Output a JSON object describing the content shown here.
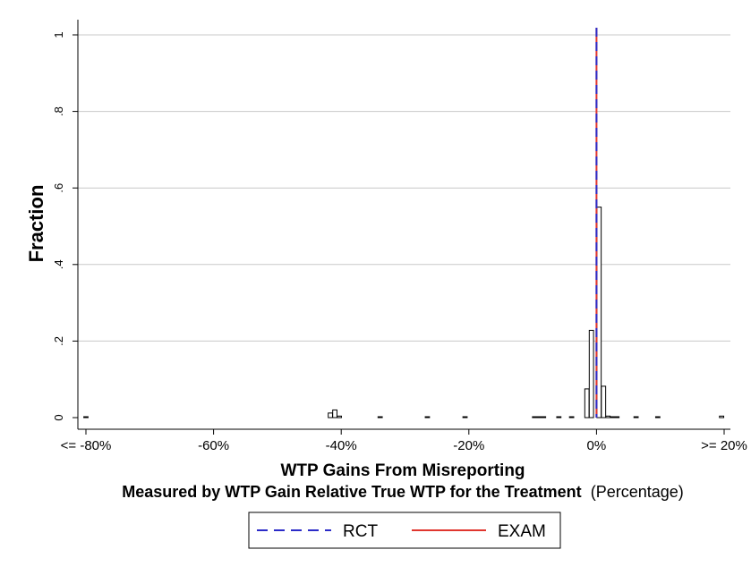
{
  "chart_data": {
    "type": "bar",
    "title": "",
    "xlabel_line1": "WTP Gains From Misreporting",
    "xlabel_line2_bold": "Measured by WTP Gain Relative True WTP for the Treatment",
    "xlabel_line2_plain": "(Percentage)",
    "ylabel": "Fraction",
    "xlim": [
      -81,
      20
    ],
    "ylim": [
      0,
      1
    ],
    "grid": true,
    "x_ticks": [
      {
        "value": -80,
        "label": "<= -80%"
      },
      {
        "value": -60,
        "label": "-60%"
      },
      {
        "value": -40,
        "label": "-40%"
      },
      {
        "value": -20,
        "label": "-20%"
      },
      {
        "value": 0,
        "label": "0%"
      },
      {
        "value": 20,
        "label": ">= 20%"
      }
    ],
    "y_ticks": [
      {
        "value": 0,
        "label": "0"
      },
      {
        "value": 0.2,
        "label": ".2"
      },
      {
        "value": 0.4,
        "label": ".4"
      },
      {
        "value": 0.6,
        "label": ".6"
      },
      {
        "value": 0.8,
        "label": ".8"
      },
      {
        "value": 1,
        "label": "1"
      }
    ],
    "bin_width": 0.67,
    "bins": [
      {
        "x": -80,
        "y": 0.002
      },
      {
        "x": -41.7,
        "y": 0.012
      },
      {
        "x": -41.0,
        "y": 0.02
      },
      {
        "x": -40.3,
        "y": 0.004
      },
      {
        "x": -33.9,
        "y": 0.002
      },
      {
        "x": -26.5,
        "y": 0.002
      },
      {
        "x": -20.6,
        "y": 0.002
      },
      {
        "x": -9.7,
        "y": 0.002
      },
      {
        "x": -9.0,
        "y": 0.002
      },
      {
        "x": -8.3,
        "y": 0.002
      },
      {
        "x": -5.9,
        "y": 0.002
      },
      {
        "x": -3.9,
        "y": 0.002
      },
      {
        "x": -1.5,
        "y": 0.075
      },
      {
        "x": -0.8,
        "y": 0.228
      },
      {
        "x": 0.4,
        "y": 0.55
      },
      {
        "x": 1.1,
        "y": 0.082
      },
      {
        "x": 1.8,
        "y": 0.004
      },
      {
        "x": 2.5,
        "y": 0.002
      },
      {
        "x": 3.2,
        "y": 0.002
      },
      {
        "x": 6.2,
        "y": 0.002
      },
      {
        "x": 9.6,
        "y": 0.002
      },
      {
        "x": 19.6,
        "y": 0.004
      }
    ],
    "reference_lines": [
      {
        "name": "RCT",
        "x": 0,
        "color": "#2b2bc8",
        "style": "dashed"
      },
      {
        "name": "EXAM",
        "x": 0,
        "color": "#e0362e",
        "style": "solid"
      }
    ],
    "legend_position": "bottom-center",
    "legend": [
      {
        "label": "RCT",
        "color": "#2b2bc8",
        "style": "dashed"
      },
      {
        "label": "EXAM",
        "color": "#e0362e",
        "style": "solid"
      }
    ]
  }
}
